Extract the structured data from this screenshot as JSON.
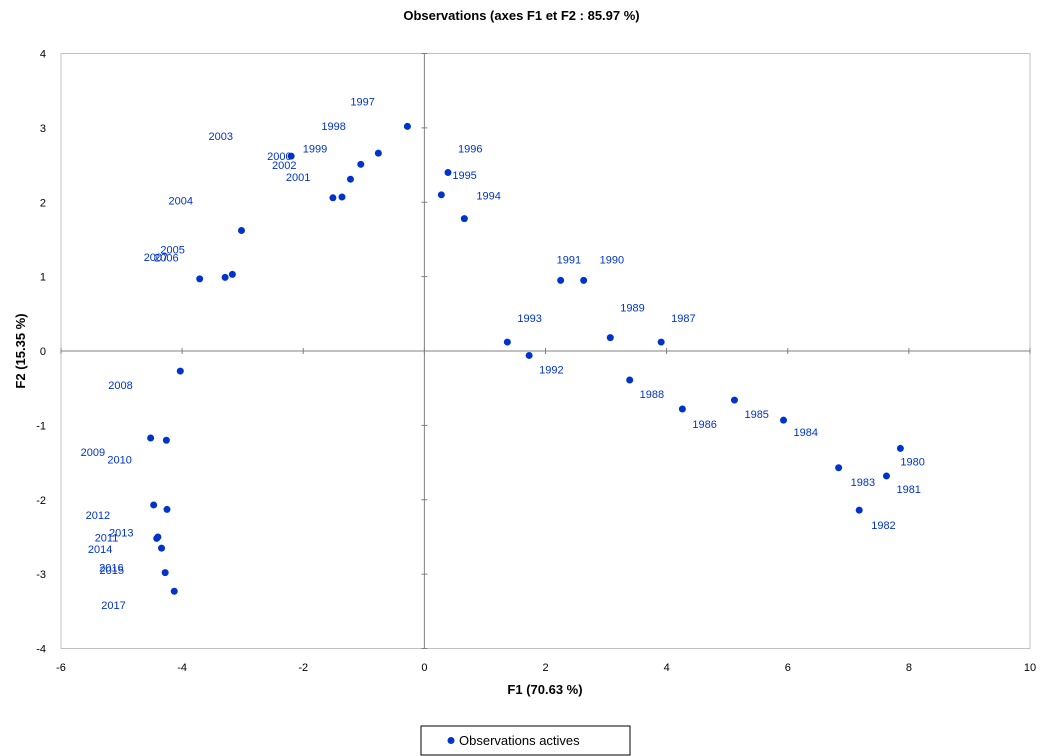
{
  "chart_data": {
    "type": "scatter",
    "title": "Observations (axes F1 et F2 : 85.97 %)",
    "xlabel": "F1 (70.63 %)",
    "ylabel": "F2 (15.35 %)",
    "xlim": [
      -6,
      10
    ],
    "ylim": [
      -4,
      4
    ],
    "x_ticks": [
      "-6",
      "-4",
      "-2",
      "0",
      "2",
      "4",
      "6",
      "8",
      "10"
    ],
    "y_ticks": [
      "4",
      "3",
      "2",
      "1",
      "0",
      "-1",
      "-2",
      "-3",
      "-4"
    ],
    "grid": false,
    "reference_lines": "x=0 and y=0",
    "legend_position": "bottom-center",
    "series": [
      {
        "name": "Observations actives",
        "color": "#0033cc",
        "points": [
          {
            "label": "1980",
            "x": 7.86,
            "y": -1.31
          },
          {
            "label": "1981",
            "x": 7.63,
            "y": -1.68
          },
          {
            "label": "1982",
            "x": 7.18,
            "y": -2.14
          },
          {
            "label": "1983",
            "x": 6.84,
            "y": -1.57
          },
          {
            "label": "1984",
            "x": 5.93,
            "y": -0.93
          },
          {
            "label": "1985",
            "x": 5.12,
            "y": -0.66
          },
          {
            "label": "1986",
            "x": 4.26,
            "y": -0.78
          },
          {
            "label": "1987",
            "x": 3.91,
            "y": 0.12
          },
          {
            "label": "1988",
            "x": 3.39,
            "y": -0.39
          },
          {
            "label": "1989",
            "x": 3.07,
            "y": 0.18
          },
          {
            "label": "1990",
            "x": 2.63,
            "y": 0.95
          },
          {
            "label": "1991",
            "x": 2.25,
            "y": 0.95
          },
          {
            "label": "1992",
            "x": 1.73,
            "y": -0.06
          },
          {
            "label": "1993",
            "x": 1.37,
            "y": 0.12
          },
          {
            "label": "1994",
            "x": 0.66,
            "y": 1.78
          },
          {
            "label": "1995",
            "x": 0.28,
            "y": 2.1
          },
          {
            "label": "1996",
            "x": 0.39,
            "y": 2.4
          },
          {
            "label": "1997",
            "x": -0.28,
            "y": 3.02
          },
          {
            "label": "1998",
            "x": -0.76,
            "y": 2.66
          },
          {
            "label": "1999",
            "x": -1.05,
            "y": 2.51
          },
          {
            "label": "2000",
            "x": -2.2,
            "y": 2.62
          },
          {
            "label": "2001",
            "x": -1.51,
            "y": 2.06
          },
          {
            "label": "2002",
            "x": -1.36,
            "y": 2.07
          },
          {
            "label": "2003",
            "x": -1.22,
            "y": 2.31
          },
          {
            "label": "2004",
            "x": -3.02,
            "y": 1.62
          },
          {
            "label": "2005",
            "x": -3.17,
            "y": 1.03
          },
          {
            "label": "2006",
            "x": -3.29,
            "y": 0.99
          },
          {
            "label": "2007",
            "x": -3.71,
            "y": 0.97
          },
          {
            "label": "2008",
            "x": -4.03,
            "y": -0.27
          },
          {
            "label": "2009",
            "x": -4.52,
            "y": -1.17
          },
          {
            "label": "2010",
            "x": -4.26,
            "y": -1.2
          },
          {
            "label": "2011",
            "x": -4.42,
            "y": -2.52
          },
          {
            "label": "2012",
            "x": -4.47,
            "y": -2.07
          },
          {
            "label": "2013",
            "x": -4.25,
            "y": -2.13
          },
          {
            "label": "2014",
            "x": -4.4,
            "y": -2.5
          },
          {
            "label": "2015",
            "x": -4.34,
            "y": -2.65
          },
          {
            "label": "2016",
            "x": -4.28,
            "y": -2.98
          },
          {
            "label": "2017",
            "x": -4.13,
            "y": -3.23
          }
        ]
      }
    ]
  }
}
